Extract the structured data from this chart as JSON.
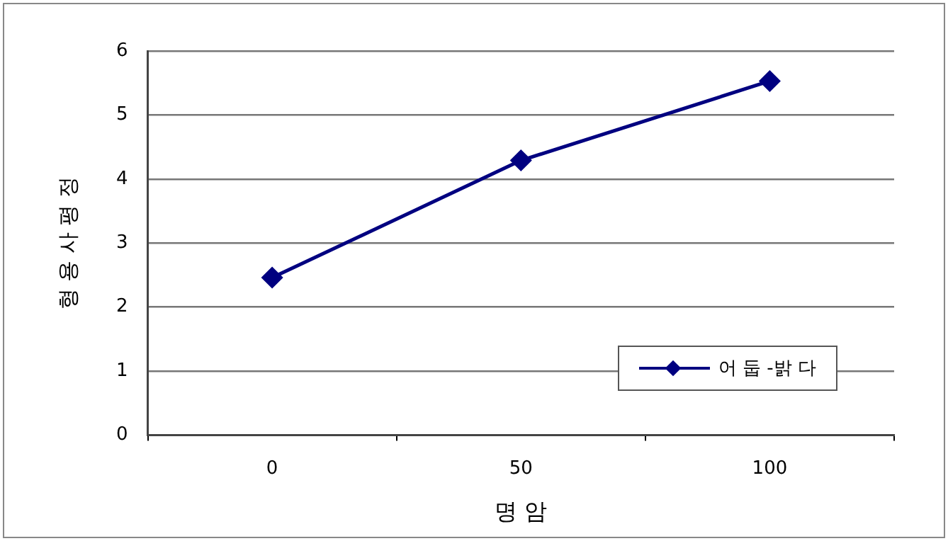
{
  "chart_data": {
    "type": "line",
    "xlabel": "명 암",
    "ylabel": "형 용 사 평 정",
    "categories": [
      "0",
      "50",
      "100"
    ],
    "series": [
      {
        "name": "어 둡 -밝 다",
        "color": "#000080",
        "values": [
          2.46,
          4.29,
          5.53
        ]
      }
    ],
    "ylim": [
      0,
      6
    ],
    "yticks": [
      0,
      1,
      2,
      3,
      4,
      5,
      6
    ],
    "grid": "y",
    "legend": "bottom right",
    "marker": "diamond",
    "line_style": "solid"
  }
}
